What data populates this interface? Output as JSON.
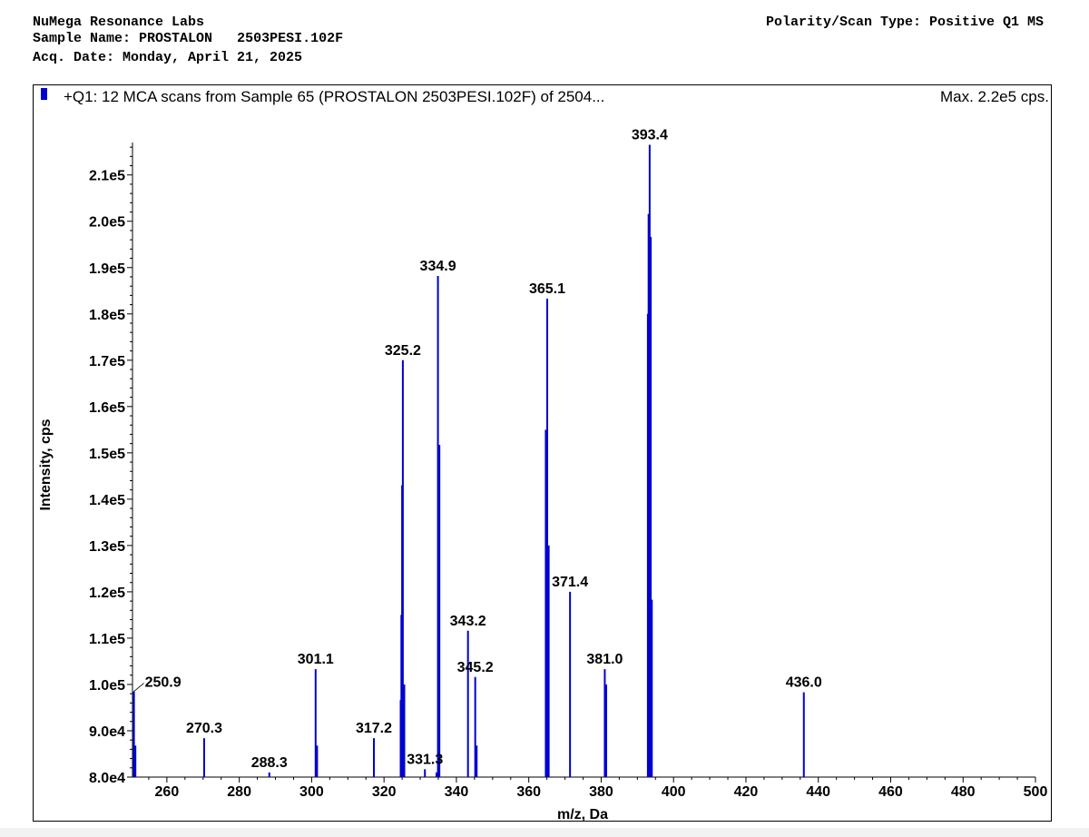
{
  "header": {
    "company": "NuMega Resonance Labs",
    "sample_label": "Sample Name:",
    "sample_name": "PROSTALON   2503PESI.102F",
    "acq_label": "Acq. Date:",
    "acq_date": "Monday, April 21, 2025",
    "polarity": "Polarity/Scan Type: Positive Q1 MS"
  },
  "chart_data": {
    "type": "bar",
    "title": "+Q1: 12 MCA scans from Sample 65 (PROSTALON   2503PESI.102F) of 2504...",
    "max_label": "Max. 2.2e5 cps.",
    "xlabel": "m/z, Da",
    "ylabel": "Intensity, cps",
    "xlim": [
      250.5,
      500
    ],
    "ylim": [
      80000,
      217000
    ],
    "xticks": [
      260,
      280,
      300,
      320,
      340,
      360,
      380,
      400,
      420,
      440,
      460,
      480,
      500
    ],
    "yticks": [
      80000,
      90000,
      100000,
      110000,
      120000,
      130000,
      140000,
      150000,
      160000,
      170000,
      180000,
      190000,
      200000,
      210000
    ],
    "yticklabels": [
      "8.0e4",
      "9.0e4",
      "1.0e5",
      "1.1e5",
      "1.2e5",
      "1.3e5",
      "1.4e5",
      "1.5e5",
      "1.6e5",
      "1.7e5",
      "1.8e5",
      "1.9e5",
      "2.0e5",
      "2.1e5"
    ],
    "series_color": "#0000d0",
    "peaks": [
      {
        "x": 250.9,
        "y": 98500
      },
      {
        "x": 251.3,
        "y": 86800
      },
      {
        "x": 270.3,
        "y": 88400
      },
      {
        "x": 288.3,
        "y": 81000
      },
      {
        "x": 301.1,
        "y": 103300
      },
      {
        "x": 301.5,
        "y": 86800
      },
      {
        "x": 317.2,
        "y": 88400
      },
      {
        "x": 324.6,
        "y": 96600
      },
      {
        "x": 324.8,
        "y": 115000
      },
      {
        "x": 325.0,
        "y": 143000
      },
      {
        "x": 325.2,
        "y": 170000
      },
      {
        "x": 325.6,
        "y": 100000
      },
      {
        "x": 331.3,
        "y": 81700
      },
      {
        "x": 334.5,
        "y": 81000
      },
      {
        "x": 334.9,
        "y": 188200
      },
      {
        "x": 335.3,
        "y": 151700
      },
      {
        "x": 343.2,
        "y": 111600
      },
      {
        "x": 345.2,
        "y": 101600
      },
      {
        "x": 345.6,
        "y": 86800
      },
      {
        "x": 364.7,
        "y": 155000
      },
      {
        "x": 365.1,
        "y": 183300
      },
      {
        "x": 365.5,
        "y": 130000
      },
      {
        "x": 371.4,
        "y": 120000
      },
      {
        "x": 381.0,
        "y": 103300
      },
      {
        "x": 381.4,
        "y": 100000
      },
      {
        "x": 392.9,
        "y": 180000
      },
      {
        "x": 393.1,
        "y": 201600
      },
      {
        "x": 393.4,
        "y": 216500
      },
      {
        "x": 393.7,
        "y": 196600
      },
      {
        "x": 394.0,
        "y": 118300
      },
      {
        "x": 436.0,
        "y": 98300
      }
    ],
    "peak_labels": [
      {
        "x": 250.9,
        "y": 98500,
        "text": "250.9"
      },
      {
        "x": 270.3,
        "y": 88400,
        "text": "270.3"
      },
      {
        "x": 288.3,
        "y": 81000,
        "text": "288.3"
      },
      {
        "x": 301.1,
        "y": 103300,
        "text": "301.1"
      },
      {
        "x": 317.2,
        "y": 88400,
        "text": "317.2"
      },
      {
        "x": 325.2,
        "y": 170000,
        "text": "325.2"
      },
      {
        "x": 331.3,
        "y": 81700,
        "text": "331.3"
      },
      {
        "x": 334.9,
        "y": 188200,
        "text": "334.9"
      },
      {
        "x": 343.2,
        "y": 111600,
        "text": "343.2"
      },
      {
        "x": 345.2,
        "y": 101600,
        "text": "345.2"
      },
      {
        "x": 365.1,
        "y": 183300,
        "text": "365.1"
      },
      {
        "x": 371.4,
        "y": 120000,
        "text": "371.4"
      },
      {
        "x": 381.0,
        "y": 103300,
        "text": "381.0"
      },
      {
        "x": 393.4,
        "y": 216500,
        "text": "393.4"
      },
      {
        "x": 436.0,
        "y": 98300,
        "text": "436.0"
      }
    ]
  }
}
